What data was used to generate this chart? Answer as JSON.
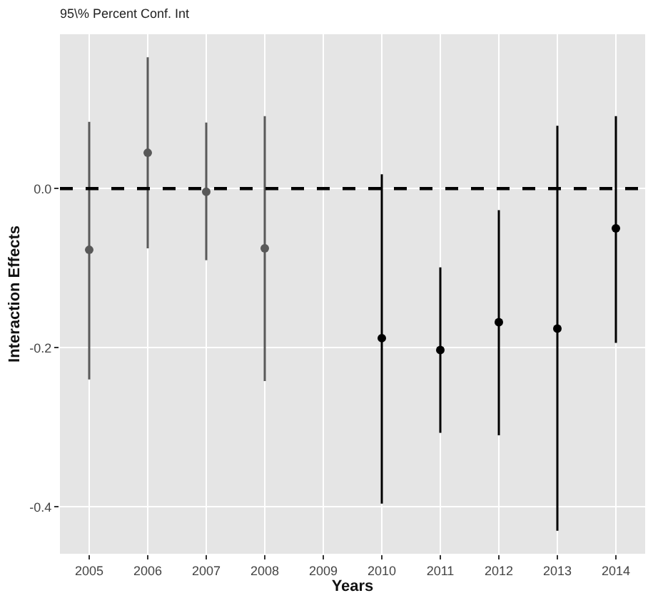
{
  "chart_data": {
    "type": "scatter",
    "title": "95\\% Percent Conf. Int",
    "xlabel": "Years",
    "ylabel": "Interaction Effects",
    "categories": [
      "2005",
      "2006",
      "2007",
      "2008",
      "2009",
      "2010",
      "2011",
      "2012",
      "2013",
      "2014"
    ],
    "series": [
      {
        "color": "#595959",
        "values": [
          -0.077,
          0.045,
          -0.004,
          -0.075,
          null,
          null,
          null,
          null,
          null,
          null
        ],
        "errors": [
          [
            -0.24,
            0.084
          ],
          [
            -0.075,
            0.165
          ],
          [
            -0.09,
            0.083
          ],
          [
            -0.242,
            0.091
          ],
          null,
          null,
          null,
          null,
          null,
          null
        ]
      },
      {
        "color": "#000000",
        "values": [
          null,
          null,
          null,
          null,
          null,
          -0.188,
          -0.203,
          -0.168,
          -0.176,
          -0.05
        ],
        "errors": [
          null,
          null,
          null,
          null,
          null,
          [
            -0.396,
            0.018
          ],
          [
            -0.307,
            -0.099
          ],
          [
            -0.31,
            -0.027
          ],
          [
            -0.43,
            0.079
          ],
          [
            -0.194,
            0.091
          ]
        ]
      }
    ],
    "ylim": [
      -0.459,
      0.194
    ],
    "yticks": [
      {
        "value": -0.4,
        "label": "-0.4"
      },
      {
        "value": -0.2,
        "label": "-0.2"
      },
      {
        "value": 0,
        "label": "0.0"
      }
    ],
    "ref_lines": [
      {
        "axis": "y",
        "value": 0,
        "color": "#000000",
        "line_style": "dashed"
      }
    ],
    "grid": true,
    "marker": "circle"
  }
}
